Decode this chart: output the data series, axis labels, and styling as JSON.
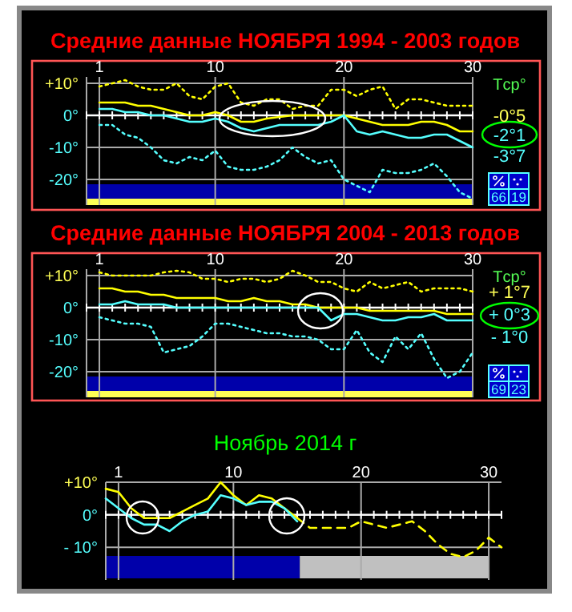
{
  "chart_data": [
    {
      "type": "line",
      "title": "Средние  данные  НОЯБРЯ  1994 - 2003 годов",
      "x": [
        1,
        2,
        3,
        4,
        5,
        6,
        7,
        8,
        9,
        10,
        11,
        12,
        13,
        14,
        15,
        16,
        17,
        18,
        19,
        20,
        21,
        22,
        23,
        24,
        25,
        26,
        27,
        28,
        29,
        30
      ],
      "xlim": [
        0,
        30
      ],
      "xticks": [
        1,
        10,
        20,
        30
      ],
      "ylim": [
        -28,
        12
      ],
      "yticks": [
        {
          "value": 10,
          "label": "+10°"
        },
        {
          "value": 0,
          "label": "0°"
        },
        {
          "value": -10,
          "label": "-10°"
        },
        {
          "value": -20,
          "label": "-20°"
        }
      ],
      "grid": true,
      "series": [
        {
          "color": "#ffff00",
          "line_style": "dotted",
          "values": [
            9,
            10,
            11,
            9,
            8,
            8,
            10,
            6,
            5,
            9,
            10,
            4,
            3,
            5,
            5,
            2,
            3,
            3,
            8,
            8,
            6,
            8,
            9,
            2,
            5,
            5,
            4,
            3,
            3,
            3
          ]
        },
        {
          "color": "#ffff00",
          "line_style": "solid",
          "values": [
            4,
            4,
            4,
            3,
            3,
            2,
            1,
            0,
            0,
            1,
            0,
            -2,
            -2,
            -1,
            -0.5,
            0,
            0,
            0,
            0,
            0,
            -1,
            -2,
            -3,
            -3,
            -3,
            -2,
            -2,
            -3,
            -5,
            -5
          ]
        },
        {
          "color": "#55ffff",
          "line_style": "solid",
          "values": [
            2,
            2,
            1,
            1,
            0,
            0,
            -1,
            -2,
            -2,
            -1,
            -2,
            -4,
            -5,
            -4,
            -3,
            -3,
            -3,
            -3,
            -2,
            0,
            -5,
            -6,
            -5,
            -6,
            -7,
            -7,
            -6,
            -6,
            -8,
            -10
          ]
        },
        {
          "color": "#55ffff",
          "line_style": "dotted",
          "values": [
            -3,
            -3,
            -6,
            -7,
            -10,
            -14,
            -15,
            -13,
            -14,
            -11,
            -16,
            -17,
            -17,
            -16,
            -14,
            -10,
            -13,
            -15,
            -14,
            -20,
            -22,
            -24,
            -17,
            -18,
            -18,
            -17,
            -15,
            -19,
            -24,
            -26
          ]
        }
      ],
      "annotations": [
        "Tср°",
        "-0°5",
        "-2°1",
        "-3°7",
        "66",
        "19"
      ]
    },
    {
      "type": "line",
      "title": "Средние  данные  НОЯБРЯ  2004 - 2013 годов",
      "x": [
        1,
        2,
        3,
        4,
        5,
        6,
        7,
        8,
        9,
        10,
        11,
        12,
        13,
        14,
        15,
        16,
        17,
        18,
        19,
        20,
        21,
        22,
        23,
        24,
        25,
        26,
        27,
        28,
        29,
        30
      ],
      "xlim": [
        0,
        30
      ],
      "xticks": [
        1,
        10,
        20,
        30
      ],
      "ylim": [
        -28,
        12
      ],
      "yticks": [
        {
          "value": 10,
          "label": "+10°"
        },
        {
          "value": 0,
          "label": "0°"
        },
        {
          "value": -10,
          "label": "-10°"
        },
        {
          "value": -20,
          "label": "-20°"
        }
      ],
      "grid": true,
      "series": [
        {
          "color": "#ffff00",
          "line_style": "dotted",
          "values": [
            11,
            10,
            10,
            10,
            10,
            11,
            11.5,
            11,
            9,
            9,
            8,
            9,
            9,
            8,
            9,
            11.5,
            10,
            8,
            8,
            6,
            5,
            8,
            6,
            7,
            8,
            5,
            6,
            6,
            6,
            5
          ]
        },
        {
          "color": "#ffff00",
          "line_style": "solid",
          "values": [
            6,
            6,
            5,
            5,
            4,
            4,
            3,
            3,
            3,
            3,
            2,
            2,
            3,
            2,
            2,
            1,
            1,
            0,
            0,
            0,
            0,
            -1,
            -1,
            -1,
            -1,
            -1,
            -1,
            -2,
            -2,
            -2
          ]
        },
        {
          "color": "#55ffff",
          "line_style": "solid",
          "values": [
            1,
            1,
            2,
            1,
            1,
            1,
            0,
            0,
            0,
            0,
            0,
            0,
            0,
            0,
            0,
            0,
            0,
            0,
            -4,
            -2,
            -2,
            -3,
            -4,
            -4,
            -3,
            -3,
            -2,
            -4,
            -4,
            -4
          ]
        },
        {
          "color": "#55ffff",
          "line_style": "dotted",
          "values": [
            -3,
            -4,
            -5,
            -5,
            -6,
            -14,
            -13,
            -12,
            -9,
            -5,
            -5,
            -6,
            -7,
            -8,
            -8,
            -9,
            -9,
            -10,
            -13,
            -13,
            -7,
            -14,
            -17,
            -9,
            -13,
            -8,
            -16,
            -22,
            -20,
            -14
          ]
        }
      ],
      "annotations": [
        "Tср°",
        "+ 1°7",
        "+ 0°3",
        "- 1°0",
        "69",
        "23"
      ]
    },
    {
      "type": "line",
      "title": "Ноябрь  2014 г",
      "xlim": [
        0,
        31
      ],
      "xticks": [
        1,
        10,
        20,
        30
      ],
      "ylim": [
        -20,
        10
      ],
      "yticks": [
        {
          "value": 10,
          "label": "+10°"
        },
        {
          "value": 0,
          "label": "0°"
        },
        {
          "value": -10,
          "label": "- 10°"
        }
      ],
      "grid": true,
      "series": [
        {
          "color": "#ffff00",
          "line_style": "solid",
          "x": [
            0,
            1,
            2,
            3,
            4,
            5,
            6,
            7,
            8,
            9,
            10,
            11,
            12,
            13,
            14,
            15
          ],
          "values": [
            8,
            7,
            2,
            -1,
            -1,
            -1,
            1,
            3,
            5,
            10,
            6,
            3,
            6,
            5,
            2,
            -1
          ]
        },
        {
          "color": "#ffff00",
          "line_style": "dashed",
          "x": [
            15,
            16,
            17,
            18,
            19,
            20,
            21,
            22,
            23,
            24,
            25,
            26,
            27,
            28,
            29,
            30,
            31
          ],
          "values": [
            -1,
            -4,
            -4,
            -4,
            -4,
            -2,
            -3,
            -4,
            -3,
            -2,
            -5,
            -9,
            -12,
            -13,
            -11,
            -7,
            -10
          ]
        },
        {
          "color": "#55ffff",
          "line_style": "solid",
          "x": [
            0,
            1,
            2,
            3,
            4,
            5,
            6,
            7,
            8,
            9,
            10,
            11,
            12,
            13,
            14,
            15
          ],
          "values": [
            5,
            2,
            -1,
            -3,
            -3,
            -5,
            -2,
            0,
            1,
            6,
            5,
            3,
            4,
            4,
            2,
            -2
          ]
        }
      ]
    }
  ]
}
